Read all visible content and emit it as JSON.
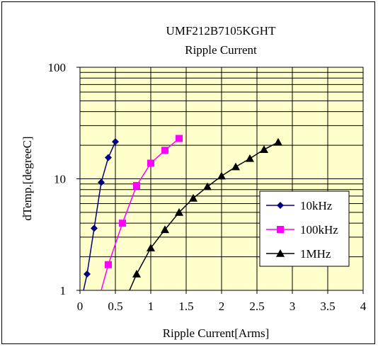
{
  "chart_data": {
    "type": "line",
    "title": "UMF212B7105KGHT",
    "subtitle": "Ripple Current",
    "xlabel": "Ripple Current[Arms]",
    "ylabel": "dTemp.[degreeC]",
    "xlim": [
      0,
      4
    ],
    "ylim": [
      1,
      100
    ],
    "yscale": "log",
    "x_ticks": [
      "0",
      "0.5",
      "1",
      "1.5",
      "2",
      "2.5",
      "3",
      "3.5",
      "4"
    ],
    "y_ticks": [
      "1",
      "10",
      "100"
    ],
    "grid": true,
    "legend_position": "right",
    "plot_background": "#ffffcc",
    "series": [
      {
        "name": "10kHz",
        "color": "#000080",
        "marker": "diamond",
        "points": [
          [
            0.05,
            1.0
          ],
          [
            0.1,
            1.4
          ],
          [
            0.2,
            3.6
          ],
          [
            0.3,
            9.3
          ],
          [
            0.4,
            15.5
          ],
          [
            0.5,
            21.5
          ]
        ]
      },
      {
        "name": "100kHz",
        "color": "#ff00ff",
        "marker": "square",
        "points": [
          [
            0.3,
            1.0
          ],
          [
            0.4,
            1.7
          ],
          [
            0.6,
            4.0
          ],
          [
            0.8,
            8.7
          ],
          [
            1.0,
            13.8
          ],
          [
            1.2,
            18.0
          ],
          [
            1.4,
            23.0
          ]
        ]
      },
      {
        "name": "1MHz",
        "color": "#000000",
        "marker": "triangle",
        "points": [
          [
            0.7,
            1.0
          ],
          [
            0.8,
            1.4
          ],
          [
            1.0,
            2.4
          ],
          [
            1.2,
            3.5
          ],
          [
            1.4,
            5.0
          ],
          [
            1.6,
            6.7
          ],
          [
            1.8,
            8.5
          ],
          [
            2.0,
            10.6
          ],
          [
            2.2,
            12.8
          ],
          [
            2.4,
            15.2
          ],
          [
            2.6,
            18.3
          ],
          [
            2.8,
            21.3
          ]
        ]
      }
    ]
  }
}
